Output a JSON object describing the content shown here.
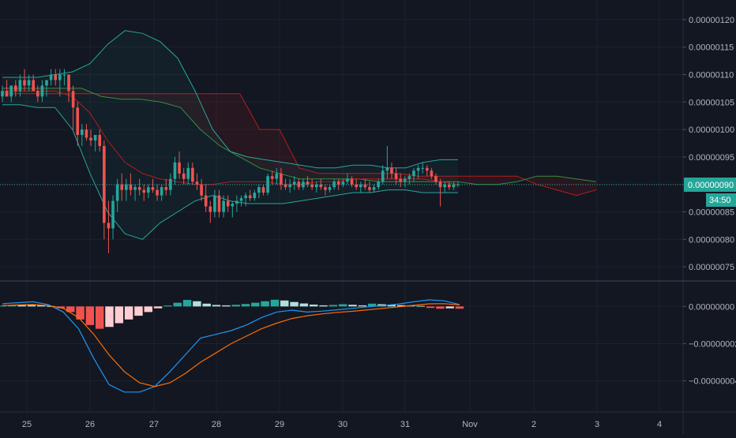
{
  "colors": {
    "background": "#131722",
    "grid": "#1e222d",
    "axis_text": "#b2b5be",
    "up": "#26a69a",
    "down": "#ef5350",
    "hist_up_strong": "#26a69a",
    "hist_up_weak": "#b2dfdb",
    "hist_down_strong": "#ef5350",
    "hist_down_weak": "#ffcdd2",
    "macd_line": "#2196f3",
    "signal_line": "#ff6d00",
    "bb_line": "#26a69a",
    "ichimoku_red": "#b71c1c",
    "ichimoku_green": "#388e3c",
    "last_price_bg": "#26a69a"
  },
  "price_axis": {
    "ticks": [
      "0.00000120",
      "0.00000115",
      "0.00000110",
      "0.00000105",
      "0.00000100",
      "0.00000095",
      "0.00000090",
      "0.00000085",
      "0.00000080",
      "0.00000075"
    ],
    "last_price_label": "0.00000090",
    "countdown_label": "34:50"
  },
  "macd_axis": {
    "ticks": [
      "0.00000000",
      "−0.00000002",
      "−0.00000004"
    ]
  },
  "time_axis": {
    "labels": [
      "25",
      "26",
      "27",
      "28",
      "29",
      "30",
      "31",
      "Nov",
      "2",
      "3",
      "4"
    ]
  },
  "chart_data": [
    {
      "type": "candlestick",
      "panel": "price",
      "ylim": [
        7.3e-07,
        1.23e-06
      ],
      "last_price": 9e-07,
      "x_labels": [
        "25",
        "26",
        "27",
        "28",
        "29",
        "30",
        "31",
        "Nov",
        "2",
        "3",
        "4"
      ],
      "candles": [
        [
          1.06e-06,
          1.08e-06,
          1.05e-06,
          1.07e-06
        ],
        [
          1.07e-06,
          1.09e-06,
          1.06e-06,
          1.06e-06
        ],
        [
          1.06e-06,
          1.08e-06,
          1.05e-06,
          1.08e-06
        ],
        [
          1.08e-06,
          1.09e-06,
          1.06e-06,
          1.07e-06
        ],
        [
          1.07e-06,
          1.1e-06,
          1.06e-06,
          1.09e-06
        ],
        [
          1.09e-06,
          1.11e-06,
          1.07e-06,
          1.08e-06
        ],
        [
          1.08e-06,
          1.1e-06,
          1.07e-06,
          1.09e-06
        ],
        [
          1.09e-06,
          1.1e-06,
          1.07e-06,
          1.07e-06
        ],
        [
          1.07e-06,
          1.08e-06,
          1.05e-06,
          1.06e-06
        ],
        [
          1.06e-06,
          1.09e-06,
          1.05e-06,
          1.08e-06
        ],
        [
          1.08e-06,
          1.09e-06,
          1.06e-06,
          1.09e-06
        ],
        [
          1.09e-06,
          1.11e-06,
          1.08e-06,
          1.1e-06
        ],
        [
          1.1e-06,
          1.11e-06,
          1.08e-06,
          1.09e-06
        ],
        [
          1.09e-06,
          1.11e-06,
          1.06e-06,
          1.1e-06
        ],
        [
          1.1e-06,
          1.11e-06,
          1.08e-06,
          1.1e-06
        ],
        [
          1.1e-06,
          1.1e-06,
          1.05e-06,
          1.07e-06
        ],
        [
          1.07e-06,
          1.08e-06,
          1e-06,
          1.04e-06
        ],
        [
          1.04e-06,
          1.05e-06,
          9.7e-07,
          9.9e-07
        ],
        [
          9.9e-07,
          1.01e-06,
          9.7e-07,
          1e-06
        ],
        [
          1e-06,
          1.01e-06,
          9.8e-07,
          9.85e-07
        ],
        [
          9.85e-07,
          1e-06,
          9.7e-07,
          9.8e-07
        ],
        [
          9.8e-07,
          9.9e-07,
          9.6e-07,
          9.9e-07
        ],
        [
          9.9e-07,
          1e-06,
          9.6e-07,
          9.7e-07
        ],
        [
          9.7e-07,
          9.8e-07,
          8e-07,
          8.3e-07
        ],
        [
          8.3e-07,
          8.7e-07,
          7.75e-07,
          8.2e-07
        ],
        [
          8.2e-07,
          8.8e-07,
          8e-07,
          8.7e-07
        ],
        [
          8.7e-07,
          9.1e-07,
          8.5e-07,
          9e-07
        ],
        [
          9e-07,
          9.2e-07,
          8.7e-07,
          8.9e-07
        ],
        [
          8.9e-07,
          9.1e-07,
          8.7e-07,
          9e-07
        ],
        [
          9e-07,
          9.2e-07,
          8.8e-07,
          8.9e-07
        ],
        [
          8.9e-07,
          9e-07,
          8.7e-07,
          8.95e-07
        ],
        [
          8.95e-07,
          9.1e-07,
          8.8e-07,
          8.9e-07
        ],
        [
          8.9e-07,
          9e-07,
          8.7e-07,
          8.85e-07
        ],
        [
          8.85e-07,
          9e-07,
          8.75e-07,
          8.95e-07
        ],
        [
          8.95e-07,
          9.1e-07,
          8.85e-07,
          8.9e-07
        ],
        [
          8.9e-07,
          9e-07,
          8.7e-07,
          8.8e-07
        ],
        [
          8.8e-07,
          9e-07,
          8.7e-07,
          8.95e-07
        ],
        [
          8.95e-07,
          9.1e-07,
          8.8e-07,
          8.9e-07
        ],
        [
          8.9e-07,
          9.2e-07,
          8.8e-07,
          9.1e-07
        ],
        [
          9.1e-07,
          9.5e-07,
          9e-07,
          9.4e-07
        ],
        [
          9.4e-07,
          9.6e-07,
          9.1e-07,
          9.2e-07
        ],
        [
          9.2e-07,
          9.3e-07,
          9e-07,
          9.1e-07
        ],
        [
          9.1e-07,
          9.4e-07,
          9e-07,
          9.3e-07
        ],
        [
          9.3e-07,
          9.4e-07,
          9e-07,
          9.05e-07
        ],
        [
          9.05e-07,
          9.2e-07,
          8.9e-07,
          9e-07
        ],
        [
          9e-07,
          9.1e-07,
          8.7e-07,
          8.8e-07
        ],
        [
          8.8e-07,
          9e-07,
          8.5e-07,
          8.6e-07
        ],
        [
          8.6e-07,
          8.7e-07,
          8.3e-07,
          8.5e-07
        ],
        [
          8.5e-07,
          8.9e-07,
          8.4e-07,
          8.8e-07
        ],
        [
          8.8e-07,
          8.9e-07,
          8.4e-07,
          8.5e-07
        ],
        [
          8.5e-07,
          8.8e-07,
          8.4e-07,
          8.7e-07
        ],
        [
          8.7e-07,
          8.8e-07,
          8.5e-07,
          8.6e-07
        ],
        [
          8.6e-07,
          8.7e-07,
          8.4e-07,
          8.65e-07
        ],
        [
          8.65e-07,
          8.8e-07,
          8.5e-07,
          8.7e-07
        ],
        [
          8.7e-07,
          8.8e-07,
          8.6e-07,
          8.75e-07
        ],
        [
          8.75e-07,
          8.85e-07,
          8.6e-07,
          8.8e-07
        ],
        [
          8.8e-07,
          8.9e-07,
          8.7e-07,
          8.75e-07
        ],
        [
          8.75e-07,
          8.9e-07,
          8.7e-07,
          8.85e-07
        ],
        [
          8.85e-07,
          9e-07,
          8.75e-07,
          8.95e-07
        ],
        [
          8.95e-07,
          9e-07,
          8.8e-07,
          8.85e-07
        ],
        [
          8.85e-07,
          9.2e-07,
          8.8e-07,
          9.15e-07
        ],
        [
          9.15e-07,
          9.25e-07,
          9e-07,
          9.1e-07
        ],
        [
          9.1e-07,
          9.3e-07,
          9e-07,
          9.2e-07
        ],
        [
          9.2e-07,
          9.3e-07,
          8.9e-07,
          9e-07
        ],
        [
          9e-07,
          9.1e-07,
          8.9e-07,
          8.95e-07
        ],
        [
          8.95e-07,
          9.1e-07,
          8.85e-07,
          9e-07
        ],
        [
          9e-07,
          9.15e-07,
          8.9e-07,
          9.05e-07
        ],
        [
          9.05e-07,
          9.1e-07,
          8.9e-07,
          8.95e-07
        ],
        [
          8.95e-07,
          9.1e-07,
          8.9e-07,
          9.05e-07
        ],
        [
          9.05e-07,
          9.15e-07,
          8.95e-07,
          9e-07
        ],
        [
          9e-07,
          9.1e-07,
          8.9e-07,
          8.95e-07
        ],
        [
          8.95e-07,
          9.05e-07,
          8.85e-07,
          9e-07
        ],
        [
          9e-07,
          9.1e-07,
          8.9e-07,
          8.95e-07
        ],
        [
          8.95e-07,
          9e-07,
          8.8e-07,
          8.9e-07
        ],
        [
          8.9e-07,
          9e-07,
          8.85e-07,
          8.95e-07
        ],
        [
          8.95e-07,
          9.1e-07,
          8.9e-07,
          9.05e-07
        ],
        [
          9.05e-07,
          9.1e-07,
          8.9e-07,
          9e-07
        ],
        [
          9e-07,
          9.1e-07,
          8.95e-07,
          9.05e-07
        ],
        [
          9.05e-07,
          9.2e-07,
          9e-07,
          9.1e-07
        ],
        [
          9.1e-07,
          9.15e-07,
          8.95e-07,
          9e-07
        ],
        [
          9e-07,
          9.1e-07,
          8.9e-07,
          8.95e-07
        ],
        [
          8.95e-07,
          9.05e-07,
          8.85e-07,
          9e-07
        ],
        [
          9e-07,
          9.1e-07,
          8.9e-07,
          8.95e-07
        ],
        [
          8.95e-07,
          9.05e-07,
          8.85e-07,
          8.9e-07
        ],
        [
          8.9e-07,
          9e-07,
          8.85e-07,
          8.95e-07
        ],
        [
          8.95e-07,
          9.1e-07,
          8.9e-07,
          9.05e-07
        ],
        [
          9.05e-07,
          9.35e-07,
          9e-07,
          9.25e-07
        ],
        [
          9.25e-07,
          9.7e-07,
          9.1e-07,
          9.3e-07
        ],
        [
          9.3e-07,
          9.4e-07,
          9.1e-07,
          9.2e-07
        ],
        [
          9.2e-07,
          9.3e-07,
          9e-07,
          9.1e-07
        ],
        [
          9.1e-07,
          9.2e-07,
          8.95e-07,
          9.05e-07
        ],
        [
          9.05e-07,
          9.15e-07,
          8.95e-07,
          9.1e-07
        ],
        [
          9.1e-07,
          9.2e-07,
          9e-07,
          9.15e-07
        ],
        [
          9.15e-07,
          9.3e-07,
          9.05e-07,
          9.25e-07
        ],
        [
          9.25e-07,
          9.35e-07,
          9.1e-07,
          9.3e-07
        ],
        [
          9.3e-07,
          9.4e-07,
          9.2e-07,
          9.3e-07
        ],
        [
          9.3e-07,
          9.35e-07,
          9.15e-07,
          9.25e-07
        ],
        [
          9.25e-07,
          9.3e-07,
          9.1e-07,
          9.15e-07
        ],
        [
          9.15e-07,
          9.2e-07,
          9e-07,
          9.05e-07
        ],
        [
          9.05e-07,
          9.1e-07,
          8.6e-07,
          8.95e-07
        ],
        [
          8.95e-07,
          9.05e-07,
          8.85e-07,
          9e-07
        ],
        [
          9e-07,
          9.05e-07,
          8.9e-07,
          8.95e-07
        ],
        [
          8.95e-07,
          9.05e-07,
          8.9e-07,
          9e-07
        ],
        [
          9e-07,
          9.05e-07,
          8.95e-07,
          9e-07
        ]
      ],
      "overlays": [
        {
          "type": "bollinger",
          "upper": [
            1.095e-06,
            1.095e-06,
            1.095e-06,
            1.1e-06,
            1.105e-06,
            1.12e-06,
            1.155e-06,
            1.18e-06,
            1.175e-06,
            1.16e-06,
            1.13e-06,
            1.07e-06,
            1e-06,
            9.6e-07,
            9.5e-07,
            9.45e-07,
            9.4e-07,
            9.35e-07,
            9.3e-07,
            9.3e-07,
            9.35e-07,
            9.35e-07,
            9.3e-07,
            9.3e-07,
            9.4e-07,
            9.45e-07,
            9.45e-07
          ],
          "basis": [
            1.07e-06,
            1.07e-06,
            1.07e-06,
            1.07e-06,
            1.06e-06,
            1.03e-06,
            9.8e-07,
            9.4e-07,
            9.2e-07,
            9.1e-07,
            9.05e-07,
            9e-07,
            9e-07,
            9.05e-07,
            9.05e-07,
            9.05e-07,
            9e-07,
            9e-07,
            9.05e-07,
            9.05e-07,
            9.1e-07,
            9.1e-07,
            9.1e-07,
            9.1e-07,
            9.1e-07,
            9.05e-07,
            9e-07
          ],
          "lower": [
            1.045e-06,
            1.045e-06,
            1.04e-06,
            1.04e-06,
            1e-06,
            9.2e-07,
            8.5e-07,
            8.1e-07,
            8e-07,
            8.3e-07,
            8.5e-07,
            8.7e-07,
            8.8e-07,
            8.7e-07,
            8.65e-07,
            8.65e-07,
            8.65e-07,
            8.7e-07,
            8.75e-07,
            8.8e-07,
            8.85e-07,
            8.85e-07,
            8.9e-07,
            8.9e-07,
            8.85e-07,
            8.85e-07,
            8.85e-07
          ]
        },
        {
          "type": "ichimoku_lines",
          "red": [
            1.065e-06,
            1.065e-06,
            1.065e-06,
            1.065e-06,
            1.065e-06,
            1.065e-06,
            1.065e-06,
            1.065e-06,
            1.065e-06,
            1.065e-06,
            1.065e-06,
            1.065e-06,
            1.065e-06,
            1e-06,
            1e-06,
            9.3e-07,
            9.2e-07,
            9.2e-07,
            9.2e-07,
            9.2e-07,
            9.2e-07,
            9.15e-07,
            9.15e-07,
            9.15e-07,
            9.15e-07,
            9.15e-07,
            9.15e-07,
            9e-07,
            8.9e-07,
            8.8e-07,
            8.9e-07
          ],
          "green": [
            1.075e-06,
            1.075e-06,
            1.075e-06,
            1.075e-06,
            1.075e-06,
            1.06e-06,
            1.055e-06,
            1.055e-06,
            1.05e-06,
            1.04e-06,
            1e-06,
            9.7e-07,
            9.5e-07,
            9.3e-07,
            9.2e-07,
            9.1e-07,
            9.1e-07,
            9.1e-07,
            9.1e-07,
            9.05e-07,
            9.05e-07,
            9.05e-07,
            9.05e-07,
            9.05e-07,
            9e-07,
            9e-07,
            9.05e-07,
            9.15e-07,
            9.15e-07,
            9.1e-07,
            9.05e-07
          ]
        }
      ]
    },
    {
      "type": "macd",
      "panel": "macd",
      "ylim": [
        -5.5e-08,
        1.2e-08
      ],
      "histogram": [
        [
          4e-10,
          "up_strong"
        ],
        [
          6e-10,
          "up_strong"
        ],
        [
          8e-10,
          "up_weak"
        ],
        [
          9e-10,
          "up_weak"
        ],
        [
          6e-10,
          "up_weak"
        ],
        [
          2e-10,
          "up_weak"
        ],
        [
          -1e-09,
          "down_strong"
        ],
        [
          -3e-09,
          "down_strong"
        ],
        [
          -7e-09,
          "down_strong"
        ],
        [
          -1e-08,
          "down_strong"
        ],
        [
          -1.2e-08,
          "down_strong"
        ],
        [
          -1.1e-08,
          "down_weak"
        ],
        [
          -9e-09,
          "down_weak"
        ],
        [
          -7e-09,
          "down_weak"
        ],
        [
          -5e-09,
          "down_weak"
        ],
        [
          -3e-09,
          "down_weak"
        ],
        [
          -1e-09,
          "down_weak"
        ],
        [
          5e-10,
          "up_strong"
        ],
        [
          2e-09,
          "up_strong"
        ],
        [
          3.5e-09,
          "up_strong"
        ],
        [
          2.8e-09,
          "up_weak"
        ],
        [
          1.5e-09,
          "up_weak"
        ],
        [
          8e-10,
          "up_weak"
        ],
        [
          6e-10,
          "up_weak"
        ],
        [
          9e-10,
          "up_strong"
        ],
        [
          1.3e-09,
          "up_strong"
        ],
        [
          2e-09,
          "up_strong"
        ],
        [
          2.8e-09,
          "up_strong"
        ],
        [
          3.6e-09,
          "up_strong"
        ],
        [
          3.2e-09,
          "up_weak"
        ],
        [
          2.4e-09,
          "up_weak"
        ],
        [
          1.6e-09,
          "up_weak"
        ],
        [
          1e-09,
          "up_weak"
        ],
        [
          6e-10,
          "up_weak"
        ],
        [
          8e-10,
          "up_strong"
        ],
        [
          1.2e-09,
          "up_strong"
        ],
        [
          9e-10,
          "up_weak"
        ],
        [
          6e-10,
          "up_weak"
        ],
        [
          1.5e-09,
          "up_strong"
        ],
        [
          1.2e-09,
          "up_weak"
        ],
        [
          9e-10,
          "up_weak"
        ],
        [
          7e-10,
          "up_weak"
        ],
        [
          6e-10,
          "up_weak"
        ],
        [
          3e-10,
          "up_weak"
        ],
        [
          -8e-10,
          "down_strong"
        ],
        [
          -1.2e-09,
          "down_strong"
        ],
        [
          -1e-09,
          "down_weak"
        ],
        [
          -1.2e-09,
          "down_strong"
        ]
      ],
      "macd_line": [
        1.5e-09,
        2e-09,
        2.5e-09,
        1e-09,
        -3e-09,
        -1.2e-08,
        -2.8e-08,
        -4.2e-08,
        -4.6e-08,
        -4.6e-08,
        -4.3e-08,
        -3.5e-08,
        -2.6e-08,
        -1.7e-08,
        -1.5e-08,
        -1.3e-08,
        -1e-08,
        -6e-09,
        -3e-09,
        -2e-09,
        -3e-09,
        -2.5e-09,
        -1.8e-09,
        -1e-09,
        -2e-10,
        5e-10,
        1.3e-09,
        2.5e-09,
        3.5e-09,
        3e-09,
        1e-09
      ],
      "signal_line": [
        5e-10,
        8e-10,
        1e-09,
        5e-10,
        -1e-09,
        -6e-09,
        -1.5e-08,
        -2.6e-08,
        -3.5e-08,
        -4.1e-08,
        -4.3e-08,
        -4.1e-08,
        -3.6e-08,
        -3e-08,
        -2.5e-08,
        -2e-08,
        -1.6e-08,
        -1.2e-08,
        -9e-09,
        -6.5e-09,
        -5e-09,
        -4e-09,
        -3.2e-09,
        -2.6e-09,
        -1.8e-09,
        -1e-09,
        -2e-10,
        6e-10,
        1.4e-09,
        1.5e-09,
        8e-10
      ]
    }
  ]
}
